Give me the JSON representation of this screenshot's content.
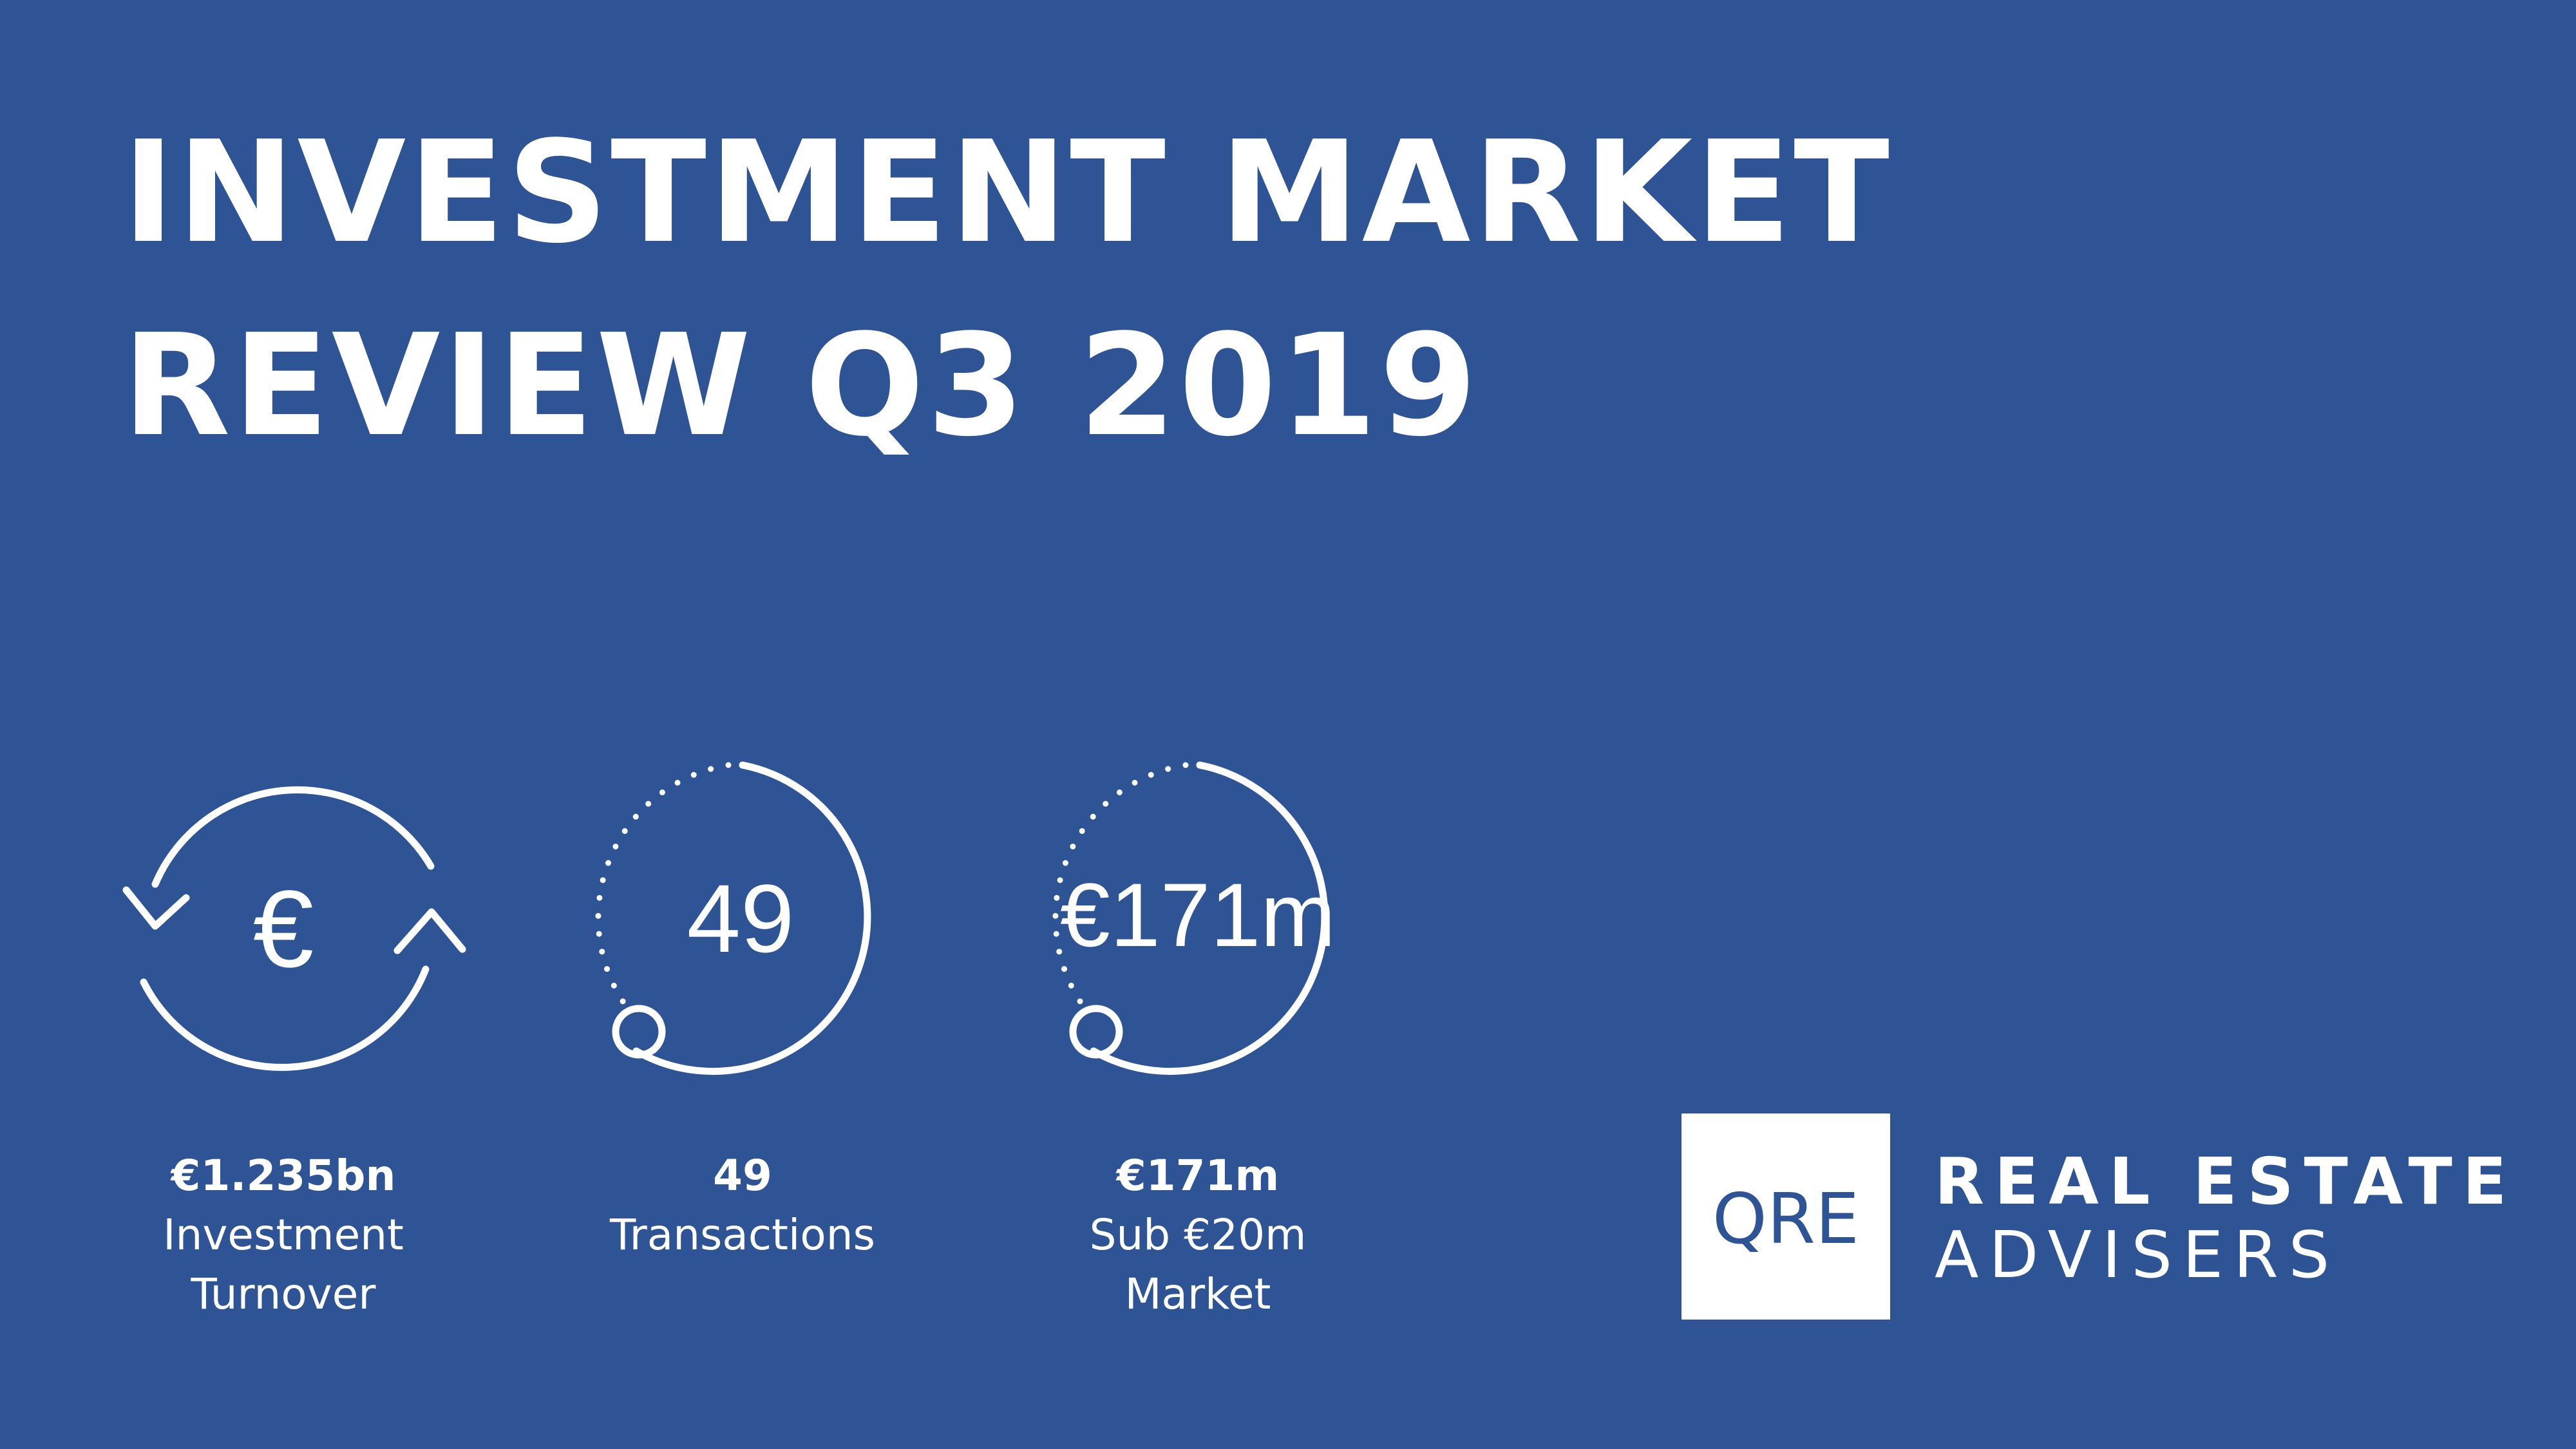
{
  "colors": {
    "background": "#2f5496",
    "foreground": "#ffffff"
  },
  "title": {
    "line1": "INVESTMENT MARKET",
    "line2": "REVIEW Q3 2019"
  },
  "stats": [
    {
      "icon": "euro-refresh-icon",
      "icon_text": "€",
      "value": "€1.235bn",
      "label_lines": [
        "Investment",
        "Turnover"
      ]
    },
    {
      "icon": "progress-dial-icon",
      "icon_text": "49",
      "value": "49",
      "label_lines": [
        "Transactions"
      ]
    },
    {
      "icon": "progress-dial-icon",
      "icon_text": "€171m",
      "value": "€171m",
      "label_lines": [
        "Sub €20m",
        "Market"
      ]
    }
  ],
  "logo": {
    "mark": "QRE",
    "line1": "REAL ESTATE",
    "line2": "ADVISERS"
  }
}
